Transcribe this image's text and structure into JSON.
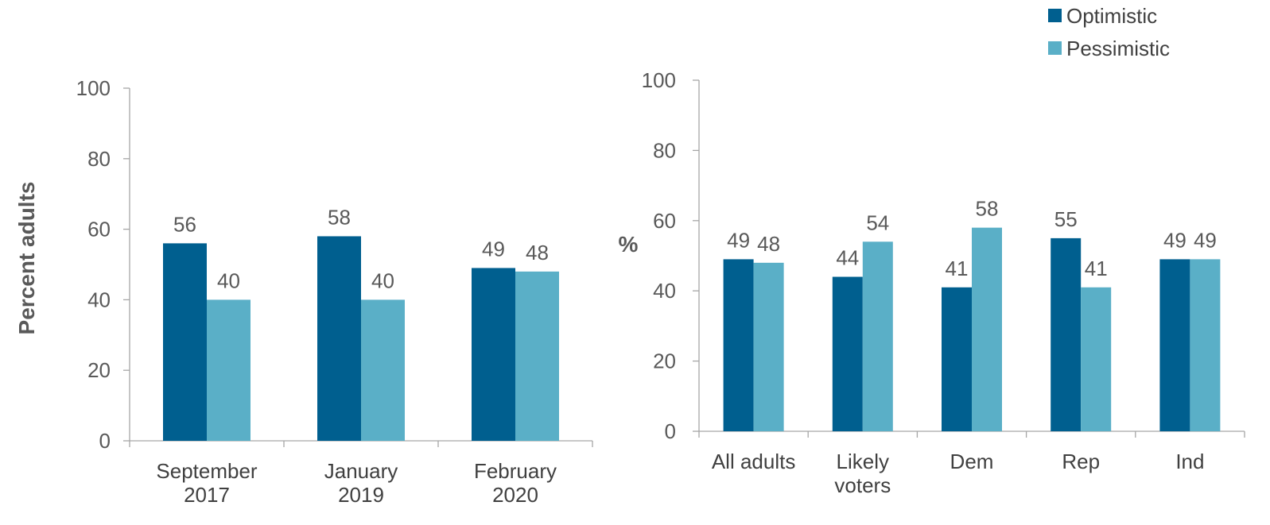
{
  "colors": {
    "optimistic": "#005f8f",
    "pessimistic": "#5aafc7",
    "axis": "#a6a6a6"
  },
  "legend": {
    "placement": "top-right",
    "items": [
      "Optimistic",
      "Pessimistic"
    ]
  },
  "chart_data": [
    {
      "type": "bar",
      "title": "",
      "ylabel": "Percent adults",
      "ylim": [
        0,
        100
      ],
      "yticks": [
        0,
        20,
        40,
        60,
        80,
        100
      ],
      "categories": [
        [
          "September",
          "2017"
        ],
        [
          "January",
          "2019"
        ],
        [
          "February",
          "2020"
        ]
      ],
      "series": [
        {
          "name": "Optimistic",
          "values": [
            56,
            58,
            49
          ]
        },
        {
          "name": "Pessimistic",
          "values": [
            40,
            40,
            48
          ]
        }
      ],
      "grid": false
    },
    {
      "type": "bar",
      "title": "",
      "ylabel": "%",
      "ylim": [
        0,
        100
      ],
      "yticks": [
        0,
        20,
        40,
        60,
        80,
        100
      ],
      "categories": [
        [
          "All adults"
        ],
        [
          "Likely",
          "voters"
        ],
        [
          "Dem"
        ],
        [
          "Rep"
        ],
        [
          "Ind"
        ]
      ],
      "series": [
        {
          "name": "Optimistic",
          "values": [
            49,
            44,
            41,
            55,
            49
          ]
        },
        {
          "name": "Pessimistic",
          "values": [
            48,
            54,
            58,
            41,
            49
          ]
        }
      ],
      "grid": false
    }
  ]
}
